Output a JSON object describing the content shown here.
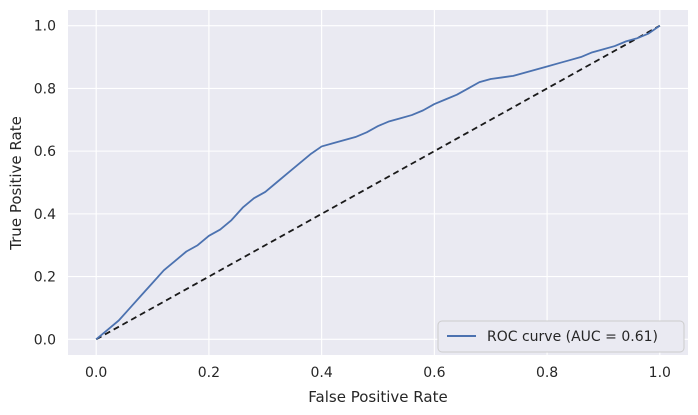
{
  "chart_data": {
    "type": "line",
    "xlabel": "False Positive Rate",
    "ylabel": "True Positive Rate",
    "xlim": [
      -0.05,
      1.05
    ],
    "ylim": [
      -0.05,
      1.05
    ],
    "xticks": [
      0.0,
      0.2,
      0.4,
      0.6,
      0.8,
      1.0
    ],
    "yticks": [
      0.0,
      0.2,
      0.4,
      0.6,
      0.8,
      1.0
    ],
    "xtick_labels": [
      "0.0",
      "0.2",
      "0.4",
      "0.6",
      "0.8",
      "1.0"
    ],
    "ytick_labels": [
      "0.0",
      "0.2",
      "0.4",
      "0.6",
      "0.8",
      "1.0"
    ],
    "grid": true,
    "legend_position": "lower-right",
    "background_color": "#eaeaf2",
    "grid_color": "#ffffff",
    "series": [
      {
        "name": "ROC curve (AUC = 0.61)",
        "color": "#4c72b0",
        "style": "solid",
        "x": [
          0.0,
          0.02,
          0.04,
          0.06,
          0.08,
          0.1,
          0.12,
          0.14,
          0.16,
          0.18,
          0.2,
          0.22,
          0.24,
          0.26,
          0.28,
          0.3,
          0.32,
          0.34,
          0.36,
          0.38,
          0.4,
          0.42,
          0.44,
          0.46,
          0.48,
          0.5,
          0.52,
          0.54,
          0.56,
          0.58,
          0.6,
          0.62,
          0.64,
          0.66,
          0.68,
          0.7,
          0.72,
          0.74,
          0.76,
          0.78,
          0.8,
          0.82,
          0.84,
          0.86,
          0.88,
          0.9,
          0.92,
          0.94,
          0.96,
          0.98,
          1.0
        ],
        "y": [
          0.0,
          0.03,
          0.06,
          0.1,
          0.14,
          0.18,
          0.22,
          0.25,
          0.28,
          0.3,
          0.33,
          0.35,
          0.38,
          0.42,
          0.45,
          0.47,
          0.5,
          0.53,
          0.56,
          0.59,
          0.615,
          0.625,
          0.635,
          0.645,
          0.66,
          0.68,
          0.695,
          0.705,
          0.715,
          0.73,
          0.75,
          0.765,
          0.78,
          0.8,
          0.82,
          0.83,
          0.835,
          0.84,
          0.85,
          0.86,
          0.87,
          0.88,
          0.89,
          0.9,
          0.915,
          0.925,
          0.935,
          0.95,
          0.96,
          0.975,
          1.0
        ]
      },
      {
        "name": "",
        "color": "#1a1a1a",
        "style": "dashed",
        "x": [
          0.0,
          1.0
        ],
        "y": [
          0.0,
          1.0
        ]
      }
    ]
  }
}
